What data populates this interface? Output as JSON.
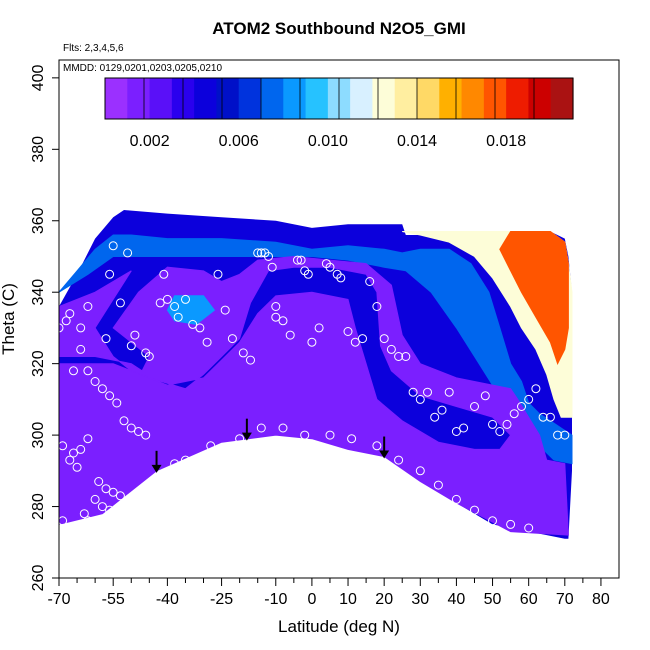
{
  "chart_data": {
    "type": "heatmap",
    "title": "ATOM2 Southbound N2O5_GMI",
    "flights_note": "Flts: 2,3,4,5,6",
    "dates_note": "MMDD: 0129,0201,0203,0205,0210",
    "xlabel": "Latitude (deg N)",
    "ylabel": "Theta (C)",
    "xlim": [
      -70,
      85
    ],
    "ylim": [
      260,
      405
    ],
    "xticks": [
      -70,
      -55,
      -40,
      -25,
      -10,
      0,
      10,
      20,
      30,
      40,
      50,
      60,
      70,
      80
    ],
    "xtick_labels": [
      "-70",
      "-55",
      "-40",
      "-25",
      "-10",
      "0",
      "10",
      "20",
      "30",
      "40",
      "50",
      "60",
      "70",
      "80"
    ],
    "xticks_minor": [
      -65,
      -60,
      -50,
      -45,
      -35,
      -30,
      -20,
      -15,
      -5,
      5,
      15,
      25,
      35,
      45,
      55,
      65,
      75
    ],
    "yticks": [
      260,
      280,
      300,
      320,
      340,
      360,
      380,
      400
    ],
    "ytick_labels": [
      "260",
      "280",
      "300",
      "320",
      "340",
      "360",
      "380",
      "400"
    ],
    "colorbar": {
      "range": [
        0,
        0.021
      ],
      "ticks": [
        0.002,
        0.006,
        0.01,
        0.014,
        0.018
      ],
      "tick_labels": [
        "0.002",
        "0.006",
        "0.010",
        "0.014",
        "0.018"
      ],
      "colors": [
        "#9b30ff",
        "#7b1fff",
        "#5a10f8",
        "#2a00ee",
        "#0c00dc",
        "#0010c8",
        "#0033dd",
        "#0066ee",
        "#0a99ff",
        "#26c2ff",
        "#8ddcff",
        "#d8f0ff",
        "#fdfdd8",
        "#ffeea0",
        "#ffd966",
        "#ffb000",
        "#ff8800",
        "#ff5500",
        "#ee1c00",
        "#cc0000",
        "#aa1212"
      ]
    },
    "arrows_lat": [
      -43,
      -18,
      20
    ],
    "bottom_boundary": [
      [
        -70,
        275
      ],
      [
        -58,
        278
      ],
      [
        -50,
        285
      ],
      [
        -43,
        290
      ],
      [
        -35,
        294
      ],
      [
        -25,
        298
      ],
      [
        -18,
        299
      ],
      [
        -10,
        300
      ],
      [
        -5,
        300
      ],
      [
        0,
        299
      ],
      [
        10,
        296
      ],
      [
        20,
        294
      ],
      [
        25,
        291
      ],
      [
        30,
        287
      ],
      [
        40,
        281
      ],
      [
        50,
        275
      ],
      [
        55,
        274
      ],
      [
        60,
        273
      ],
      [
        65,
        272
      ],
      [
        70,
        271
      ]
    ],
    "top_boundary": [
      [
        -70,
        336
      ],
      [
        -65,
        345
      ],
      [
        -60,
        355
      ],
      [
        -55,
        361
      ],
      [
        -52,
        363
      ],
      [
        -40,
        362
      ],
      [
        -25,
        361
      ],
      [
        -10,
        360
      ],
      [
        0,
        358
      ],
      [
        10,
        359
      ],
      [
        25,
        359
      ],
      [
        26,
        356
      ],
      [
        40,
        356
      ],
      [
        50,
        357
      ],
      [
        60,
        357
      ],
      [
        66,
        357
      ],
      [
        70,
        355
      ],
      [
        71,
        350
      ],
      [
        72,
        340
      ],
      [
        72,
        320
      ],
      [
        72,
        300
      ],
      [
        72,
        290
      ],
      [
        71,
        271
      ]
    ],
    "contour_low": [
      [
        [
          -50,
          346
        ],
        [
          -60,
          340
        ],
        [
          -70,
          336
        ],
        [
          -70,
          322
        ],
        [
          -60,
          322
        ],
        [
          -50,
          320
        ],
        [
          -47,
          318
        ],
        [
          -45,
          322
        ],
        [
          -55,
          330
        ],
        [
          -48,
          340
        ],
        [
          -40,
          347
        ],
        [
          -30,
          346
        ],
        [
          -25,
          343
        ],
        [
          -20,
          345
        ],
        [
          -15,
          349
        ],
        [
          -5,
          350
        ],
        [
          5,
          349
        ],
        [
          15,
          348
        ],
        [
          22,
          342
        ],
        [
          25,
          328
        ],
        [
          30,
          320
        ],
        [
          40,
          316
        ],
        [
          50,
          314
        ],
        [
          55,
          313
        ],
        [
          57,
          310
        ],
        [
          63,
          300
        ],
        [
          65,
          293
        ],
        [
          70,
          292
        ],
        [
          71,
          272
        ],
        [
          55,
          273
        ],
        [
          40,
          281
        ],
        [
          30,
          287
        ],
        [
          20,
          294
        ],
        [
          10,
          296
        ],
        [
          0,
          299
        ],
        [
          -10,
          300
        ],
        [
          -25,
          298
        ],
        [
          -43,
          290
        ],
        [
          -58,
          278
        ],
        [
          -70,
          275
        ],
        [
          -70,
          320
        ],
        [
          -55,
          320
        ],
        [
          -45,
          316
        ],
        [
          -35,
          313
        ],
        [
          -30,
          317
        ],
        [
          -25,
          322
        ],
        [
          -20,
          327
        ],
        [
          -17,
          337
        ],
        [
          -12,
          346
        ],
        [
          -5,
          347
        ],
        [
          5,
          347
        ],
        [
          15,
          345
        ],
        [
          18,
          340
        ],
        [
          19,
          325
        ],
        [
          22,
          318
        ],
        [
          30,
          311
        ],
        [
          40,
          308
        ],
        [
          50,
          305
        ],
        [
          55,
          300
        ],
        [
          52,
          296
        ],
        [
          45,
          296
        ],
        [
          35,
          298
        ],
        [
          25,
          304
        ],
        [
          18,
          310
        ],
        [
          15,
          320
        ],
        [
          12,
          330
        ],
        [
          10,
          338
        ],
        [
          0,
          340
        ],
        [
          -10,
          339
        ],
        [
          -15,
          334
        ],
        [
          -20,
          326
        ],
        [
          -25,
          321
        ],
        [
          -30,
          316
        ],
        [
          -40,
          314
        ],
        [
          -50,
          318
        ],
        [
          -55,
          322
        ],
        [
          -60,
          330
        ],
        [
          -55,
          338
        ],
        [
          -50,
          346
        ]
      ]
    ],
    "contour_mid": [
      [
        [
          -70,
          340
        ],
        [
          -65,
          346
        ],
        [
          -60,
          352
        ],
        [
          -55,
          356
        ],
        [
          -50,
          356
        ],
        [
          -40,
          355
        ],
        [
          -25,
          355
        ],
        [
          -10,
          354
        ],
        [
          0,
          352
        ],
        [
          10,
          353
        ],
        [
          20,
          352
        ],
        [
          25,
          351
        ],
        [
          30,
          352
        ],
        [
          38,
          352
        ],
        [
          44,
          348
        ],
        [
          49,
          340
        ],
        [
          52,
          330
        ],
        [
          55,
          320
        ],
        [
          58,
          315
        ],
        [
          60,
          309
        ],
        [
          63,
          306
        ],
        [
          66,
          304
        ],
        [
          69,
          302
        ],
        [
          72,
          300
        ],
        [
          72,
          292
        ],
        [
          67,
          293
        ],
        [
          64,
          296
        ],
        [
          61,
          302
        ],
        [
          58,
          308
        ],
        [
          55,
          312
        ],
        [
          50,
          314
        ],
        [
          45,
          322
        ],
        [
          40,
          330
        ],
        [
          33,
          340
        ],
        [
          26,
          346
        ],
        [
          20,
          347
        ],
        [
          10,
          349
        ],
        [
          0,
          350
        ],
        [
          -10,
          350
        ],
        [
          -25,
          350
        ],
        [
          -40,
          350
        ],
        [
          -55,
          350
        ],
        [
          -62,
          345
        ],
        [
          -70,
          340
        ]
      ]
    ],
    "contour_high": [
      [
        [
          25,
          357
        ],
        [
          35,
          357
        ],
        [
          45,
          357
        ],
        [
          55,
          357
        ],
        [
          62,
          357
        ],
        [
          66,
          357
        ],
        [
          70,
          354
        ],
        [
          71,
          348
        ],
        [
          72,
          340
        ],
        [
          72,
          328
        ],
        [
          72,
          315
        ],
        [
          72,
          305
        ],
        [
          69,
          305
        ],
        [
          67,
          310
        ],
        [
          65,
          317
        ],
        [
          62,
          324
        ],
        [
          58,
          330
        ],
        [
          55,
          336
        ],
        [
          50,
          344
        ],
        [
          45,
          350
        ],
        [
          38,
          354
        ],
        [
          30,
          356
        ],
        [
          25,
          357
        ]
      ]
    ],
    "contour_peak": [
      [
        [
          55,
          357
        ],
        [
          60,
          357
        ],
        [
          66,
          357
        ],
        [
          70,
          354
        ],
        [
          71,
          348
        ],
        [
          71,
          340
        ],
        [
          71,
          330
        ],
        [
          70,
          324
        ],
        [
          68,
          320
        ],
        [
          66,
          326
        ],
        [
          62,
          333
        ],
        [
          58,
          340
        ],
        [
          55,
          346
        ],
        [
          52,
          352
        ],
        [
          55,
          357
        ]
      ]
    ],
    "contour_dark": [
      [
        [
          -38,
          339
        ],
        [
          -30,
          339
        ],
        [
          -27,
          335
        ],
        [
          -32,
          331
        ],
        [
          -38,
          332
        ],
        [
          -40,
          335
        ],
        [
          -38,
          339
        ]
      ]
    ],
    "markers": [
      [
        -68,
        332
      ],
      [
        -67,
        334
      ],
      [
        -64,
        330
      ],
      [
        -62,
        336
      ],
      [
        -57,
        327
      ],
      [
        -56,
        345
      ],
      [
        -55,
        353
      ],
      [
        -53,
        337
      ],
      [
        -51,
        351
      ],
      [
        -50,
        325
      ],
      [
        -49,
        328
      ],
      [
        -46,
        323
      ],
      [
        -45,
        322
      ],
      [
        -42,
        337
      ],
      [
        -41,
        345
      ],
      [
        -40,
        338
      ],
      [
        -38,
        336
      ],
      [
        -37,
        333
      ],
      [
        -35,
        338
      ],
      [
        -33,
        331
      ],
      [
        -31,
        330
      ],
      [
        -29,
        326
      ],
      [
        -26,
        345
      ],
      [
        -24,
        335
      ],
      [
        -22,
        327
      ],
      [
        -19,
        323
      ],
      [
        -17,
        321
      ],
      [
        -15,
        351
      ],
      [
        -14,
        351
      ],
      [
        -13,
        351
      ],
      [
        -12,
        350
      ],
      [
        -11,
        347
      ],
      [
        -10,
        336
      ],
      [
        -10,
        333
      ],
      [
        -8,
        332
      ],
      [
        -6,
        328
      ],
      [
        -4,
        349
      ],
      [
        -3,
        349
      ],
      [
        -2,
        346
      ],
      [
        -1,
        345
      ],
      [
        0,
        326
      ],
      [
        2,
        330
      ],
      [
        4,
        348
      ],
      [
        5,
        347
      ],
      [
        7,
        345
      ],
      [
        8,
        344
      ],
      [
        10,
        329
      ],
      [
        12,
        326
      ],
      [
        14,
        327
      ],
      [
        16,
        343
      ],
      [
        18,
        336
      ],
      [
        20,
        327
      ],
      [
        22,
        324
      ],
      [
        24,
        322
      ],
      [
        26,
        322
      ],
      [
        28,
        312
      ],
      [
        30,
        310
      ],
      [
        32,
        312
      ],
      [
        34,
        305
      ],
      [
        36,
        307
      ],
      [
        38,
        312
      ],
      [
        40,
        301
      ],
      [
        42,
        302
      ],
      [
        45,
        308
      ],
      [
        48,
        311
      ],
      [
        50,
        303
      ],
      [
        52,
        301
      ],
      [
        54,
        303
      ],
      [
        56,
        306
      ],
      [
        58,
        308
      ],
      [
        60,
        310
      ],
      [
        62,
        313
      ],
      [
        64,
        305
      ],
      [
        66,
        305
      ],
      [
        68,
        300
      ],
      [
        70,
        300
      ],
      [
        -70,
        330
      ],
      [
        -66,
        318
      ],
      [
        -64,
        324
      ],
      [
        -62,
        318
      ],
      [
        -60,
        315
      ],
      [
        -58,
        313
      ],
      [
        -56,
        311
      ],
      [
        -54,
        309
      ],
      [
        -52,
        304
      ],
      [
        -50,
        302
      ],
      [
        -48,
        301
      ],
      [
        -46,
        300
      ],
      [
        -62,
        299
      ],
      [
        -64,
        296
      ],
      [
        -66,
        295
      ],
      [
        -59,
        287
      ],
      [
        -57,
        285
      ],
      [
        -55,
        284
      ],
      [
        -53,
        283
      ],
      [
        -60,
        282
      ],
      [
        -58,
        280
      ],
      [
        -56,
        279
      ],
      [
        -63,
        278
      ],
      [
        -62,
        276
      ],
      [
        -38,
        292
      ],
      [
        -35,
        293
      ],
      [
        -28,
        297
      ],
      [
        -20,
        299
      ],
      [
        -14,
        302
      ],
      [
        -8,
        302
      ],
      [
        -2,
        300
      ],
      [
        5,
        300
      ],
      [
        11,
        299
      ],
      [
        18,
        297
      ],
      [
        24,
        293
      ],
      [
        30,
        290
      ],
      [
        35,
        286
      ],
      [
        40,
        282
      ],
      [
        45,
        279
      ],
      [
        50,
        276
      ],
      [
        55,
        275
      ],
      [
        60,
        274
      ],
      [
        -69,
        297
      ],
      [
        -67,
        293
      ],
      [
        -65,
        291
      ],
      [
        -69,
        276
      ]
    ]
  }
}
